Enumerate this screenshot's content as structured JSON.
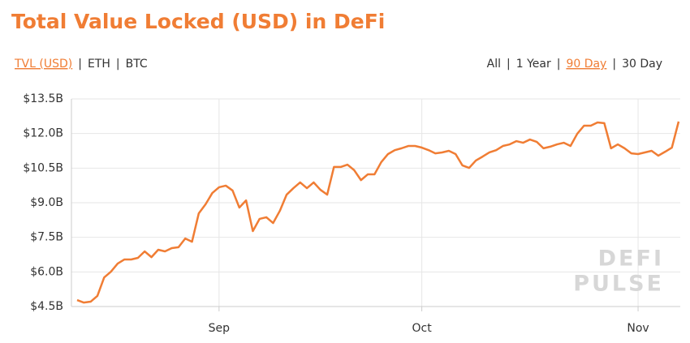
{
  "title": "Total Value Locked (USD) in DeFi",
  "separator": "|",
  "units": {
    "items": [
      "TVL (USD)",
      "ETH",
      "BTC"
    ],
    "active": 0
  },
  "ranges": {
    "items": [
      "All",
      "1 Year",
      "90 Day",
      "30 Day"
    ],
    "active": 2
  },
  "watermark": [
    "DEFI",
    "PULSE"
  ],
  "chart_data": {
    "type": "line",
    "color": "#f07d34",
    "grid": true,
    "categories": [
      null,
      null,
      null,
      null,
      null,
      null,
      null,
      null,
      null,
      null,
      null,
      null,
      null,
      null,
      null,
      null,
      null,
      null,
      null,
      null,
      null,
      "Sep",
      null,
      null,
      null,
      null,
      null,
      null,
      null,
      null,
      null,
      null,
      null,
      null,
      null,
      null,
      null,
      null,
      null,
      null,
      null,
      null,
      null,
      null,
      null,
      null,
      null,
      null,
      null,
      null,
      null,
      "Oct",
      null,
      null,
      null,
      null,
      null,
      null,
      null,
      null,
      null,
      null,
      null,
      null,
      null,
      null,
      null,
      null,
      null,
      null,
      null,
      null,
      null,
      null,
      null,
      null,
      null,
      null,
      null,
      null,
      null,
      null,
      null,
      "Nov",
      null,
      null,
      null,
      null,
      null,
      null
    ],
    "values": [
      4.78,
      4.67,
      4.71,
      4.96,
      5.76,
      6.01,
      6.36,
      6.54,
      6.54,
      6.61,
      6.89,
      6.64,
      6.96,
      6.89,
      7.03,
      7.07,
      7.45,
      7.31,
      8.54,
      8.93,
      9.42,
      9.67,
      9.74,
      9.53,
      8.79,
      9.1,
      7.77,
      8.3,
      8.37,
      8.12,
      8.65,
      9.35,
      9.63,
      9.88,
      9.63,
      9.88,
      9.56,
      9.35,
      10.55,
      10.55,
      10.65,
      10.41,
      9.98,
      10.23,
      10.23,
      10.76,
      11.11,
      11.28,
      11.36,
      11.46,
      11.46,
      11.39,
      11.28,
      11.14,
      11.18,
      11.25,
      11.11,
      10.62,
      10.51,
      10.83,
      11.0,
      11.18,
      11.28,
      11.46,
      11.53,
      11.67,
      11.6,
      11.74,
      11.64,
      11.36,
      11.43,
      11.53,
      11.6,
      11.46,
      11.99,
      12.34,
      12.34,
      12.48,
      12.45,
      11.36,
      11.53,
      11.36,
      11.14,
      11.11,
      11.18,
      11.25,
      11.04,
      11.21,
      11.39,
      12.52
    ],
    "ylim": [
      4.5,
      13.5
    ],
    "yticks": [
      {
        "value": 4.5,
        "label": "$4.5B"
      },
      {
        "value": 6,
        "label": "$6.0B"
      },
      {
        "value": 7.5,
        "label": "$7.5B"
      },
      {
        "value": 9,
        "label": "$9.0B"
      },
      {
        "value": 10.5,
        "label": "$10.5B"
      },
      {
        "value": 12,
        "label": "$12.0B"
      },
      {
        "value": 13.5,
        "label": "$13.5B"
      }
    ]
  }
}
